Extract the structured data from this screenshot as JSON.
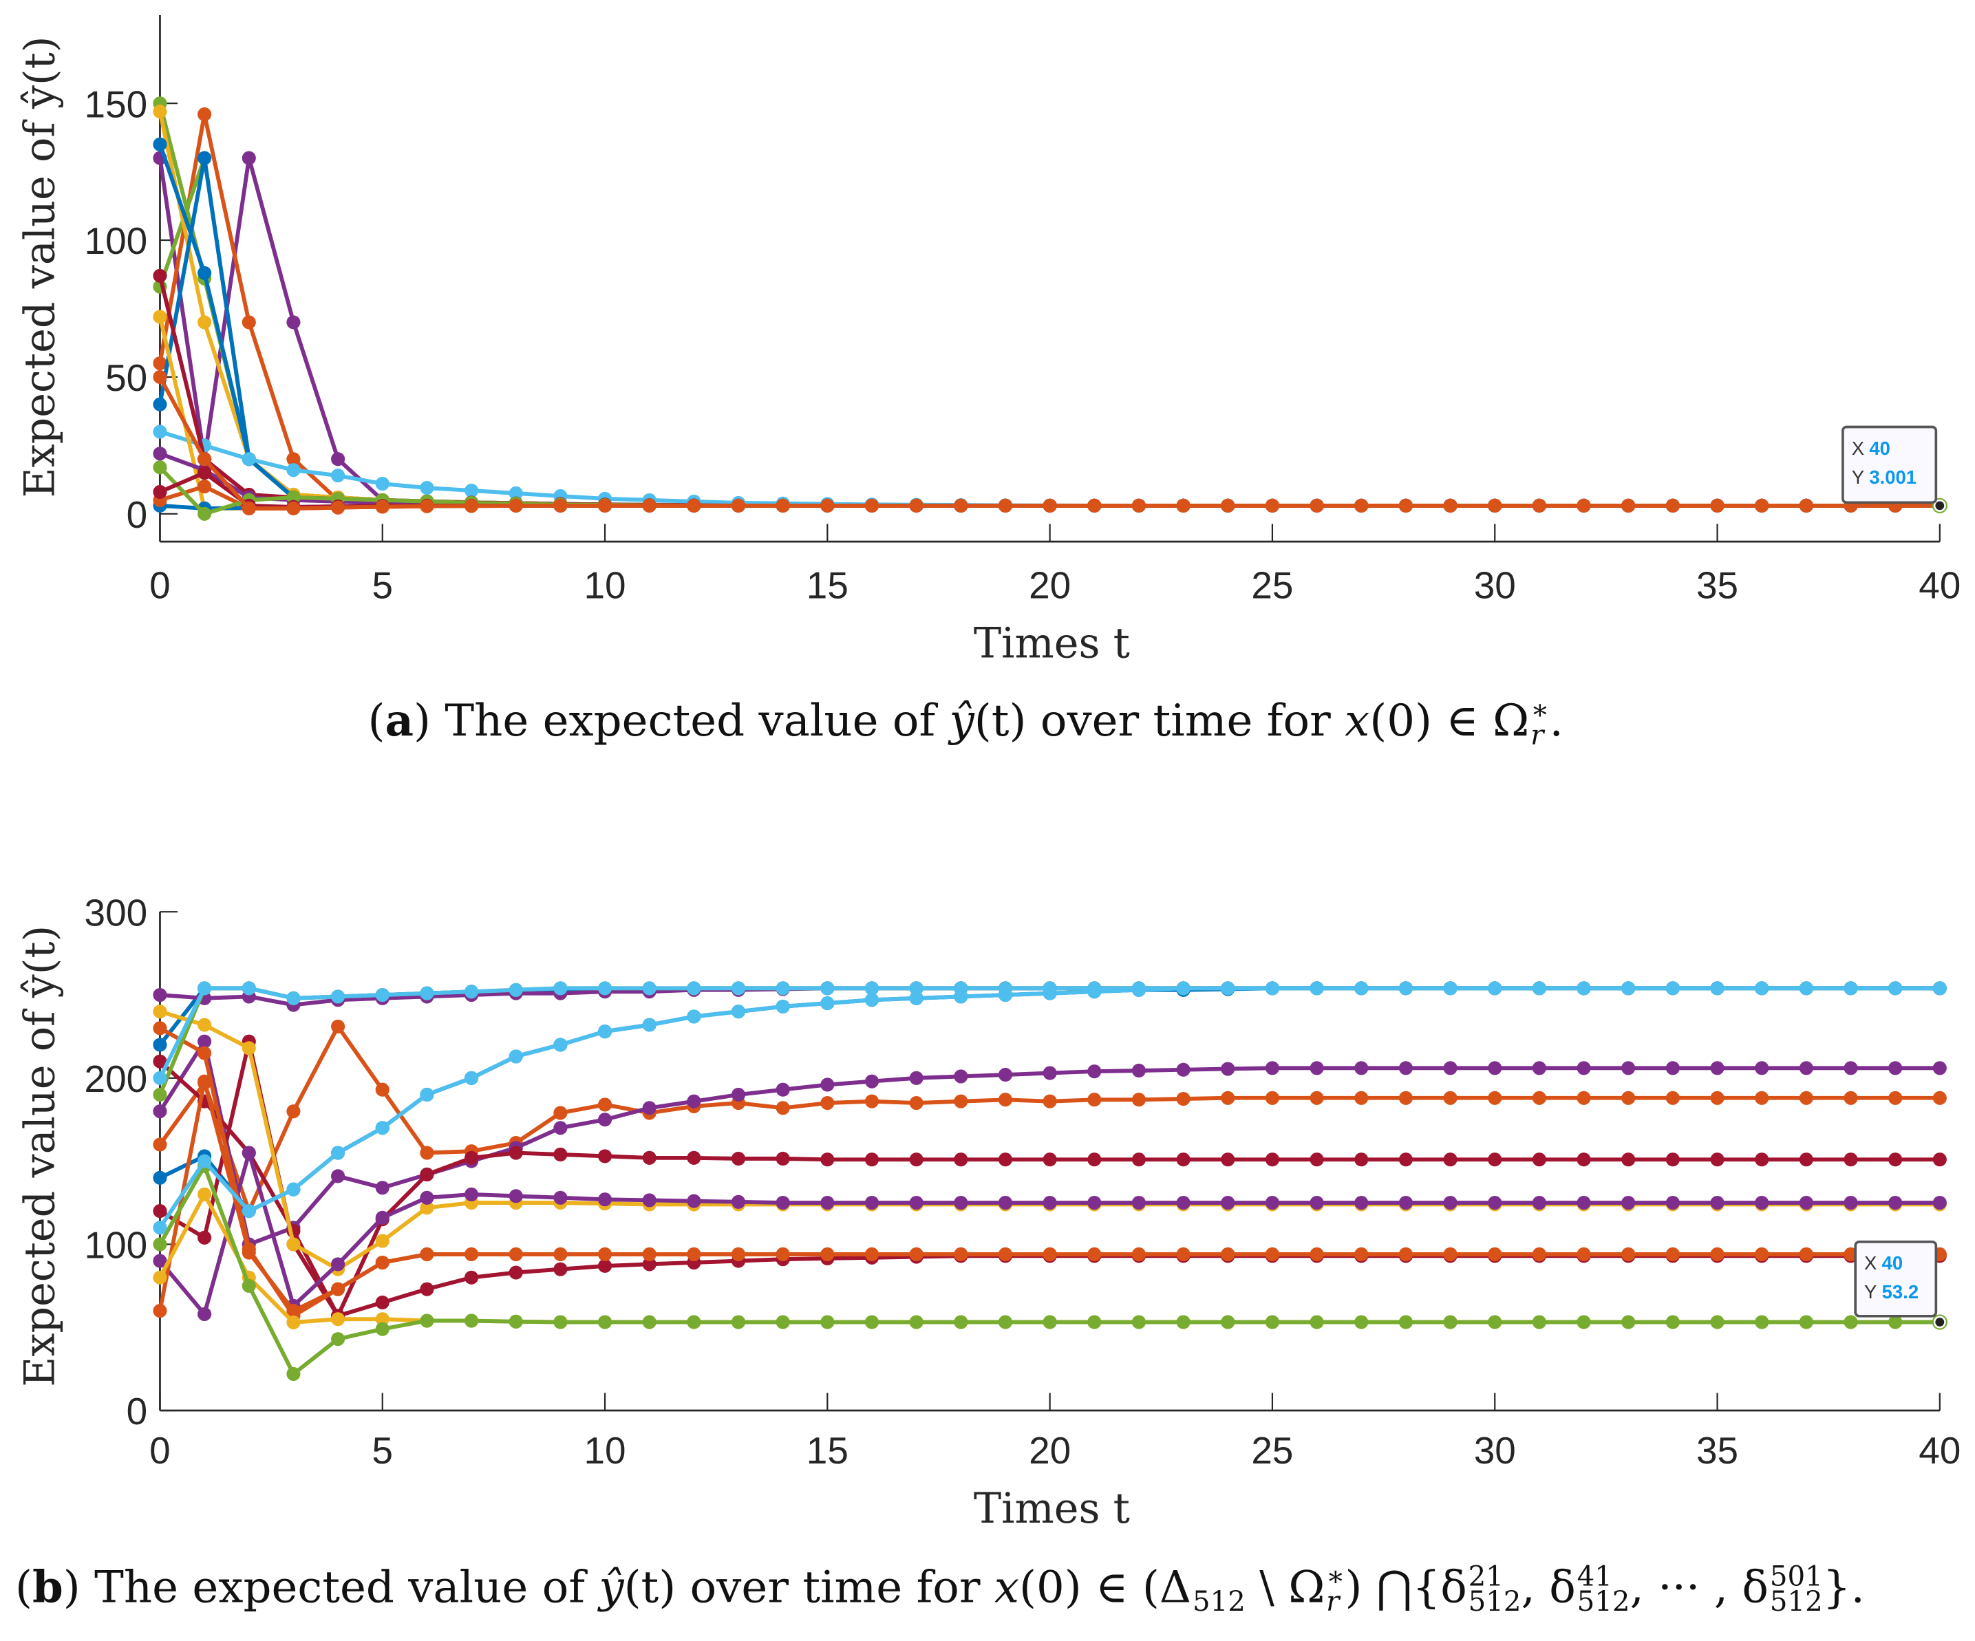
{
  "colors": {
    "blue": "#0072BD",
    "orange": "#D95319",
    "yellow": "#EDB120",
    "purple": "#7E2F8E",
    "green": "#77AC30",
    "lightblue": "#4DBEEE",
    "darkred": "#A2142F",
    "axis": "#262626",
    "tip_value": "#0a97f0"
  },
  "chart_data": [
    {
      "type": "line",
      "title": "",
      "xlabel": "Times t",
      "ylabel": "Expected value of ŷ(t)",
      "x_range": [
        0,
        40
      ],
      "x_step": 1,
      "xticks": [
        0,
        5,
        10,
        15,
        20,
        25,
        30,
        35,
        40
      ],
      "yticks": [
        0,
        50,
        100,
        150
      ],
      "ylim": [
        -10,
        182
      ],
      "grid": false,
      "note": "each series lists values from t=0; afterwards it stays at final_value",
      "series": [
        {
          "color": "purple",
          "values": [
            130,
            20,
            130,
            70,
            20,
            5,
            4.6,
            4.2,
            3.9,
            3.6,
            3.4,
            3.3,
            3.2,
            3.1,
            3.05
          ],
          "final_value": 3
        },
        {
          "color": "orange",
          "values": [
            55,
            146,
            70,
            20,
            5,
            4.8,
            4.4,
            4,
            3.7,
            3.5,
            3.3,
            3.2,
            3.1,
            3.05
          ],
          "final_value": 3
        },
        {
          "color": "green",
          "values": [
            83,
            130,
            20,
            7,
            6,
            5,
            4.6,
            4.2,
            3.9,
            3.6,
            3.4,
            3.2,
            3.1,
            3.05
          ],
          "final_value": 3
        },
        {
          "color": "green",
          "values": [
            150,
            86,
            20,
            7,
            6,
            5,
            4.6,
            4.2,
            3.9,
            3.6,
            3.4,
            3.2,
            3.1
          ],
          "final_value": 3
        },
        {
          "color": "yellow",
          "values": [
            147,
            70,
            20,
            7,
            6,
            5,
            4.5,
            4.1,
            3.8,
            3.5,
            3.3,
            3.1
          ],
          "final_value": 3
        },
        {
          "color": "blue",
          "values": [
            135,
            88,
            20,
            6,
            5,
            4.5,
            4.2,
            3.9,
            3.6,
            3.4,
            3.2,
            3.1
          ],
          "final_value": 3
        },
        {
          "color": "blue",
          "values": [
            40,
            130,
            20,
            6,
            5,
            4.5,
            4.1,
            3.8,
            3.5,
            3.3,
            3.1
          ],
          "final_value": 3
        },
        {
          "color": "lightblue",
          "values": [
            30,
            25,
            20,
            16,
            14,
            11,
            9.5,
            8.5,
            7.5,
            6.5,
            5.5,
            5,
            4.5,
            4,
            3.8,
            3.6,
            3.4,
            3.3,
            3.2,
            3.1,
            3.05
          ],
          "final_value": 3
        },
        {
          "color": "darkred",
          "values": [
            87,
            20,
            7,
            6,
            5.5,
            5,
            4.5,
            4.1,
            3.8,
            3.6,
            3.4,
            3.2,
            3.1
          ],
          "final_value": 3
        },
        {
          "color": "yellow",
          "values": [
            72,
            2,
            2,
            2.3,
            2.6,
            2.8,
            2.9
          ],
          "final_value": 3
        },
        {
          "color": "blue",
          "values": [
            3,
            2,
            2.2,
            2.5,
            2.7,
            2.9
          ],
          "final_value": 3
        },
        {
          "color": "orange",
          "values": [
            5,
            10,
            2,
            2,
            2.3,
            2.6,
            2.8,
            2.9
          ],
          "final_value": 3
        },
        {
          "color": "purple",
          "values": [
            22,
            16,
            6,
            5,
            4.5,
            4,
            3.7,
            3.4,
            3.2,
            3.1
          ],
          "final_value": 3
        },
        {
          "color": "green",
          "values": [
            17,
            0,
            5,
            6,
            5.5,
            5,
            4.5,
            4,
            3.7,
            3.4,
            3.2,
            3.1
          ],
          "final_value": 3
        },
        {
          "color": "darkred",
          "values": [
            8,
            15,
            3,
            2.5,
            2.7,
            2.9
          ],
          "final_value": 3
        },
        {
          "color": "orange",
          "values": [
            50,
            20,
            2,
            2,
            2.3,
            2.6,
            2.8,
            2.9
          ],
          "final_value": 3
        }
      ],
      "datatip": {
        "x_label": "X",
        "x_value": "40",
        "y_label": "Y",
        "y_value": "3.001"
      }
    },
    {
      "type": "line",
      "title": "",
      "xlabel": "Times t",
      "ylabel": "Expected value of ŷ(t)",
      "x_range": [
        0,
        40
      ],
      "x_step": 1,
      "xticks": [
        0,
        5,
        10,
        15,
        20,
        25,
        30,
        35,
        40
      ],
      "yticks": [
        0,
        100,
        200,
        300
      ],
      "ylim": [
        0,
        300
      ],
      "grid": false,
      "note": "each series lists values from t=0; afterwards it stays at final_value",
      "series": [
        {
          "color": "blue",
          "values": [
            220,
            254,
            254,
            248,
            249,
            250,
            251,
            252,
            252,
            253,
            253,
            253.5
          ],
          "final_value": 254
        },
        {
          "color": "purple",
          "values": [
            250,
            248,
            249,
            244,
            247,
            248,
            249,
            250,
            251,
            251,
            252,
            252,
            253,
            253,
            253.5
          ],
          "final_value": 254
        },
        {
          "color": "blue",
          "values": [
            140,
            153,
            120,
            133,
            155,
            170,
            190,
            200,
            213,
            220,
            228,
            232,
            237,
            240,
            243,
            245,
            247,
            248,
            249,
            250,
            251,
            252,
            253,
            253,
            253.5
          ],
          "final_value": 254
        },
        {
          "color": "orange",
          "values": [
            160,
            197,
            120,
            180,
            231,
            193,
            155,
            156,
            161,
            179,
            184,
            179,
            183,
            185,
            182,
            185,
            186,
            185,
            186,
            187,
            186,
            187,
            187,
            187.5
          ],
          "final_value": 188
        },
        {
          "color": "purple",
          "values": [
            180,
            222,
            100,
            110,
            141,
            134,
            142,
            150,
            158,
            170,
            175,
            182,
            186,
            190,
            193,
            196,
            198,
            200,
            201,
            202,
            203,
            204,
            204.5,
            205,
            205.5
          ],
          "final_value": 206
        },
        {
          "color": "darkred",
          "values": [
            210,
            186,
            155,
            108,
            57,
            65,
            73,
            80,
            83,
            85,
            87,
            88,
            89,
            90,
            91,
            91.5,
            92,
            92.5
          ],
          "final_value": 93
        },
        {
          "color": "darkred",
          "values": [
            120,
            104,
            222,
            100,
            57,
            115,
            142,
            152,
            155,
            154,
            153,
            152,
            152,
            151.5,
            151.5
          ],
          "final_value": 151
        },
        {
          "color": "yellow",
          "values": [
            240,
            232,
            218,
            100,
            85,
            102,
            122,
            125,
            125,
            125,
            124.5
          ],
          "final_value": 124
        },
        {
          "color": "purple",
          "values": [
            90,
            58,
            155,
            63,
            88,
            116,
            128,
            130,
            129,
            128,
            127,
            126.5,
            126,
            125.5
          ],
          "final_value": 125
        },
        {
          "color": "orange",
          "values": [
            60,
            198,
            95,
            60,
            73,
            89,
            94
          ],
          "final_value": 94
        },
        {
          "color": "orange",
          "values": [
            230,
            215,
            97,
            57,
            73,
            89,
            94
          ],
          "final_value": 94
        },
        {
          "color": "yellow",
          "values": [
            80,
            130,
            80,
            53,
            55,
            55,
            54,
            54,
            53.5
          ],
          "final_value": 53.2
        },
        {
          "color": "green",
          "values": [
            100,
            147,
            75,
            22,
            43,
            49,
            54,
            54,
            53.5
          ],
          "final_value": 53.2
        },
        {
          "color": "green",
          "values": [
            190,
            254,
            254,
            248,
            249,
            250,
            251,
            252,
            253
          ],
          "final_value": 254
        },
        {
          "color": "lightblue",
          "values": [
            200,
            254,
            254,
            248,
            249,
            250,
            251,
            252,
            253
          ],
          "final_value": 254
        },
        {
          "color": "lightblue",
          "values": [
            110,
            150,
            120,
            133,
            155,
            170,
            190,
            200,
            213,
            220,
            228,
            232,
            237,
            240,
            243,
            245,
            247,
            248,
            249,
            250,
            251,
            252,
            253
          ],
          "final_value": 254
        }
      ],
      "datatip": {
        "x_label": "X",
        "x_value": "40",
        "y_label": "Y",
        "y_value": "53.2"
      }
    }
  ],
  "caption_a": {
    "open": "(",
    "label": "a",
    "close": ")",
    "text1": " The expected value of ",
    "yhat": "ŷ",
    "t_arg": "(t)",
    "text2": " over time for ",
    "x0": "x",
    "x0_arg": "(0) ∈ Ω",
    "sub_r": "r",
    "sup_star": "∗",
    "end": "."
  },
  "caption_b": {
    "open": "(",
    "label": "b",
    "close": ")",
    "text1": " The expected value of ",
    "yhat": "ŷ",
    "t_arg": "(t)",
    "text2": " over time for ",
    "x0": "x",
    "x0_arg": "(0) ∈ (Δ",
    "sub_512": "512",
    "minus": " \\ Ω",
    "sub_r": "r",
    "sup_star": "∗",
    "cap": ") ⋂{δ",
    "d1_sup": "21",
    "d1_sub": "512",
    "sep1": ", δ",
    "d2_sup": "41",
    "d2_sub": "512",
    "sep2": ", ··· , δ",
    "d3_sup": "501",
    "d3_sub": "512",
    "end": "}."
  }
}
